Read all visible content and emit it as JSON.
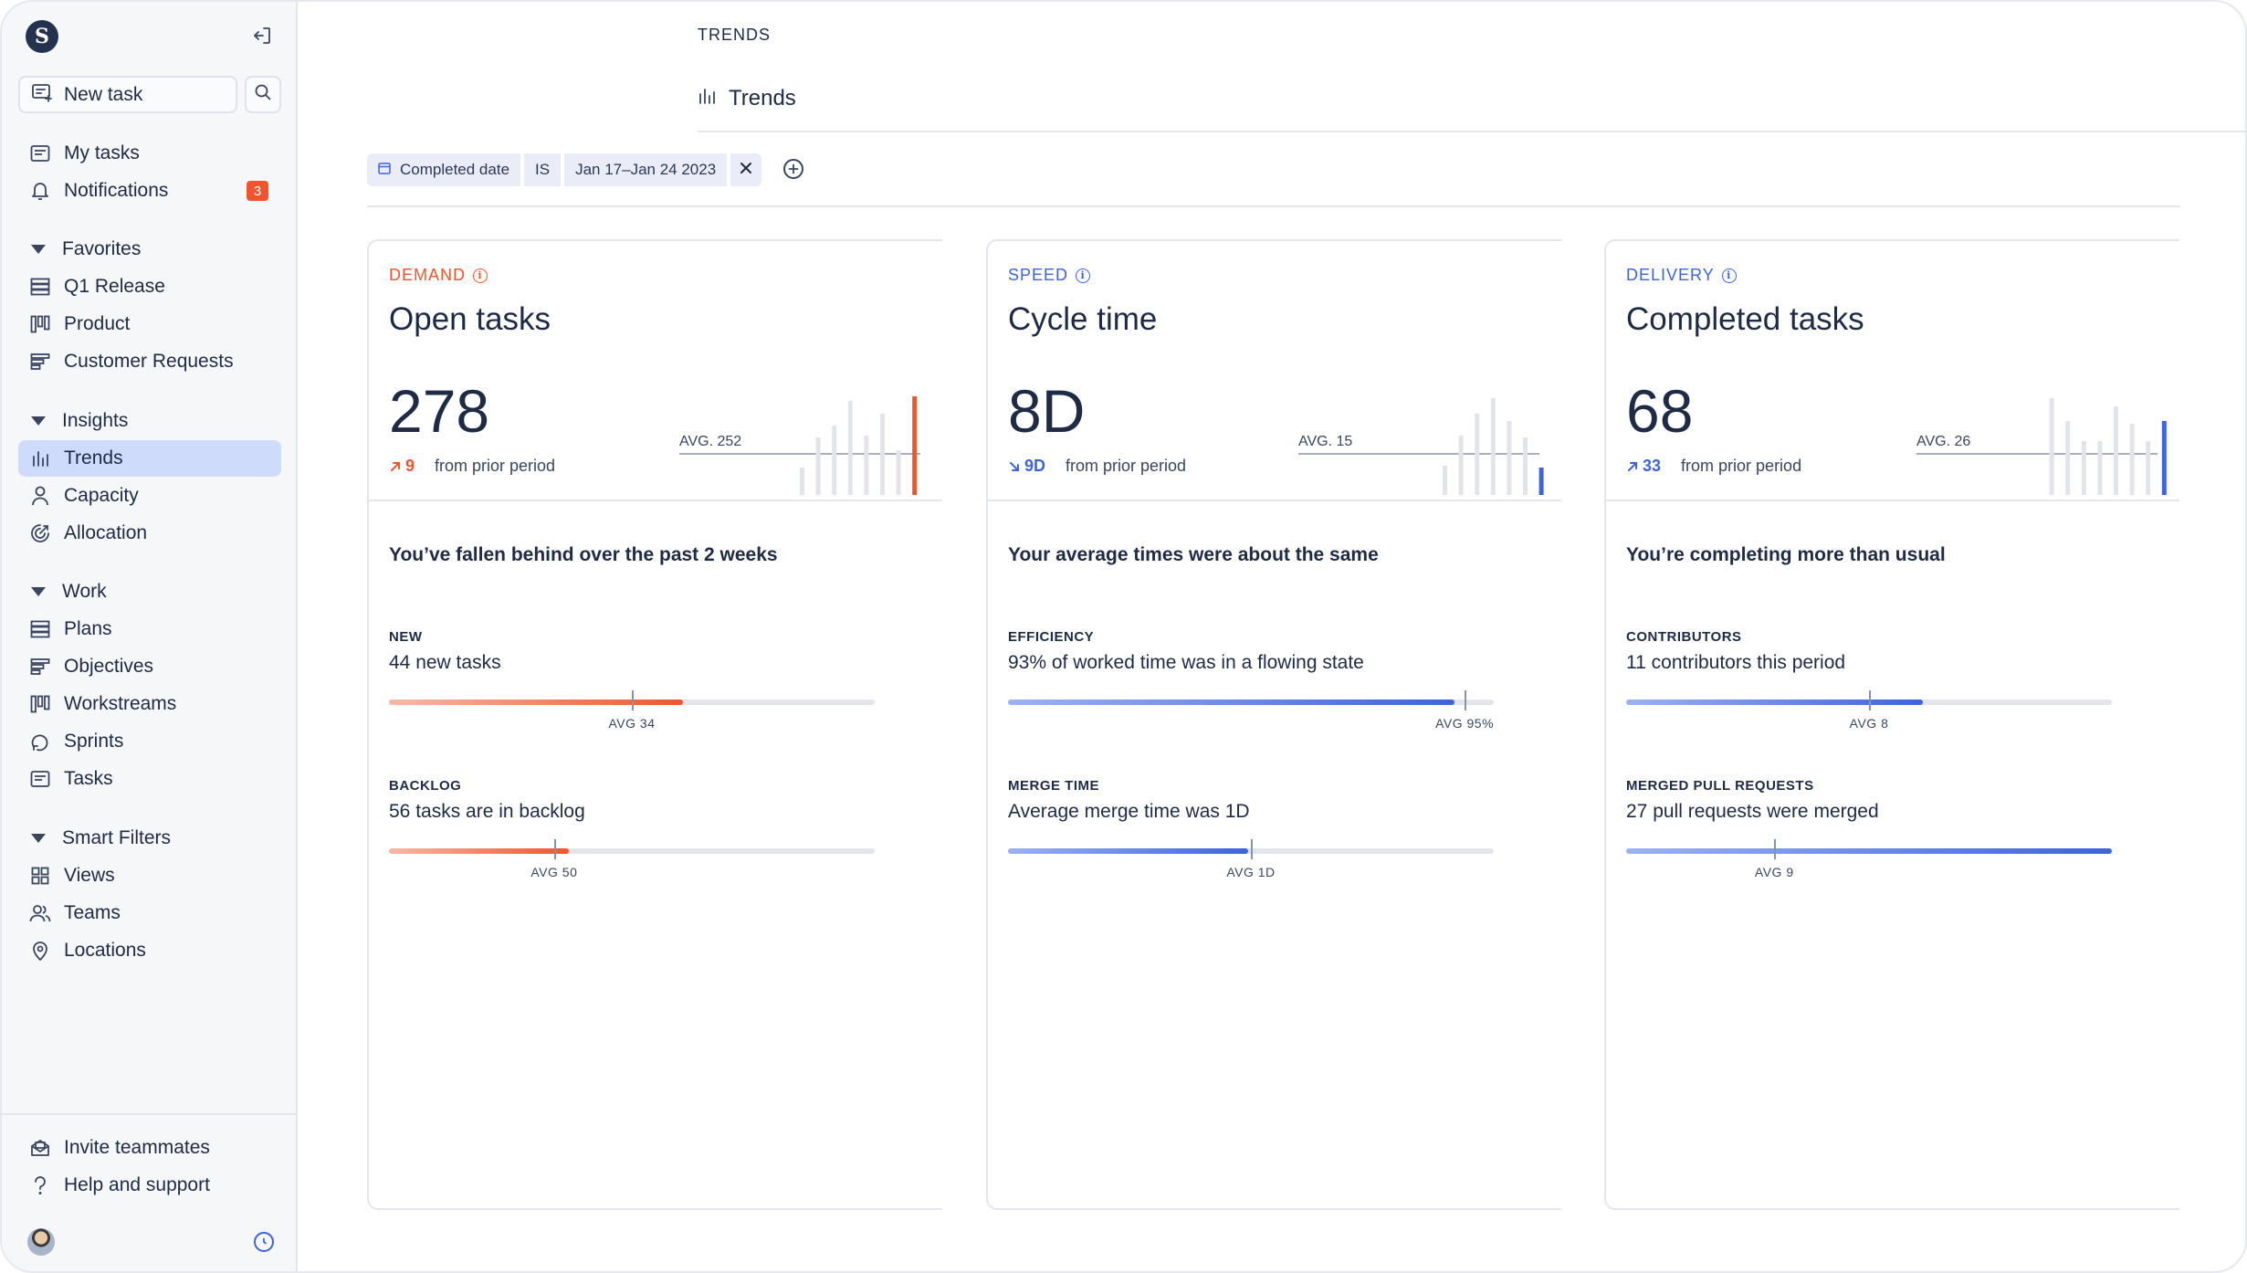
{
  "sidebar": {
    "logo": "S",
    "new_task_label": "New task",
    "top_items": [
      {
        "label": "My tasks",
        "icon": "inbox-icon"
      },
      {
        "label": "Notifications",
        "icon": "bell-icon",
        "badge": "3"
      }
    ],
    "sections": [
      {
        "label": "Favorites",
        "items": [
          "Q1 Release",
          "Product",
          "Customer Requests"
        ]
      },
      {
        "label": "Insights",
        "items": [
          "Trends",
          "Capacity",
          "Allocation"
        ]
      },
      {
        "label": "Work",
        "items": [
          "Plans",
          "Objectives",
          "Workstreams",
          "Sprints",
          "Tasks"
        ]
      },
      {
        "label": "Smart Filters",
        "items": [
          "Views",
          "Teams",
          "Locations"
        ]
      }
    ],
    "active_item": "Trends",
    "bottom_items": [
      "Invite teammates",
      "Help and support"
    ]
  },
  "header": {
    "breadcrumb": "TRENDS",
    "title": "Trends"
  },
  "filter": {
    "field": "Completed date",
    "operator": "IS",
    "value": "Jan 17–Jan 24 2023"
  },
  "colors": {
    "demand": "#f0552f",
    "speed": "#3d63dd",
    "delivery": "#3d63dd",
    "active_nav": "#cfdbfb"
  },
  "cards": [
    {
      "kicker": "DEMAND",
      "title": "Open tasks",
      "value": "278",
      "delta": "9",
      "delta_direction": "up",
      "delta_suffix": "from prior period",
      "avg_label": "AVG. 252",
      "summary": "You’ve fallen behind over the past 2 weeks",
      "metrics": [
        {
          "label": "NEW",
          "text": "44 new tasks",
          "fill": 0.605,
          "avg": 0.5,
          "avg_label": "AVG 34"
        },
        {
          "label": "BACKLOG",
          "text": "56 tasks are in backlog",
          "fill": 0.37,
          "avg": 0.34,
          "avg_label": "AVG 50"
        }
      ]
    },
    {
      "kicker": "SPEED",
      "title": "Cycle time",
      "value": "8D",
      "delta": "9D",
      "delta_direction": "down",
      "delta_suffix": "from prior period",
      "avg_label": "AVG. 15",
      "summary": "Your average times were about the same",
      "metrics": [
        {
          "label": "EFFICIENCY",
          "text": "93% of worked time was in a flowing state",
          "fill": 0.92,
          "avg": 0.94,
          "avg_label": "AVG 95%"
        },
        {
          "label": "MERGE TIME",
          "text": "Average merge time was 1D",
          "fill": 0.495,
          "avg": 0.5,
          "avg_label": "AVG 1D"
        }
      ]
    },
    {
      "kicker": "DELIVERY",
      "title": "Completed tasks",
      "value": "68",
      "delta": "33",
      "delta_direction": "up",
      "delta_suffix": "from prior period",
      "avg_label": "AVG. 26",
      "summary": "You’re completing more than usual",
      "metrics": [
        {
          "label": "CONTRIBUTORS",
          "text": "11 contributors this period",
          "fill": 0.61,
          "avg": 0.5,
          "avg_label": "AVG 8"
        },
        {
          "label": "MERGED PULL REQUESTS",
          "text": "27 pull requests were merged",
          "fill": 1.0,
          "avg": 0.305,
          "avg_label": "AVG 9"
        }
      ]
    }
  ]
}
